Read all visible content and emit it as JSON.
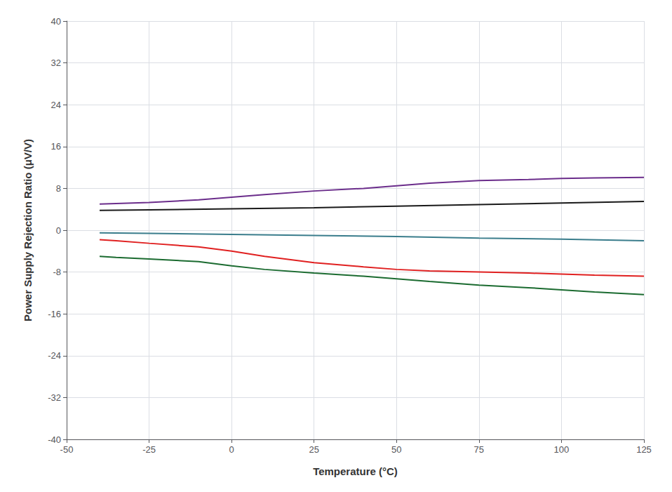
{
  "chart_data": {
    "type": "line",
    "xlabel": "Temperature (°C)",
    "ylabel": "Power Supply Rejection Ratio (μV/V)",
    "xlim": [
      -50,
      125
    ],
    "ylim": [
      -40,
      40
    ],
    "xticks": [
      -50,
      -25,
      0,
      25,
      50,
      75,
      100,
      125
    ],
    "yticks": [
      -40,
      -32,
      -24,
      -16,
      -8,
      0,
      8,
      16,
      24,
      32,
      40
    ],
    "grid": true,
    "series": [
      {
        "color": "#6B2D8B",
        "x": [
          -40,
          -35,
          -25,
          -10,
          0,
          10,
          25,
          40,
          50,
          60,
          75,
          90,
          100,
          110,
          125
        ],
        "values": [
          5.0,
          5.1,
          5.3,
          5.8,
          6.3,
          6.8,
          7.5,
          8.0,
          8.5,
          9.0,
          9.5,
          9.7,
          9.9,
          10.0,
          10.1
        ]
      },
      {
        "color": "#1a1a1a",
        "x": [
          -40,
          -25,
          0,
          25,
          50,
          75,
          100,
          125
        ],
        "values": [
          3.8,
          3.9,
          4.1,
          4.3,
          4.6,
          4.9,
          5.2,
          5.5
        ]
      },
      {
        "color": "#3A7D8C",
        "x": [
          -40,
          -25,
          0,
          25,
          50,
          75,
          100,
          125
        ],
        "values": [
          -0.5,
          -0.6,
          -0.8,
          -1.0,
          -1.2,
          -1.5,
          -1.7,
          -2.0
        ]
      },
      {
        "color": "#e02020",
        "x": [
          -40,
          -35,
          -25,
          -10,
          0,
          10,
          25,
          40,
          50,
          60,
          75,
          90,
          100,
          110,
          125
        ],
        "values": [
          -1.8,
          -2.0,
          -2.5,
          -3.2,
          -4.0,
          -5.0,
          -6.2,
          -7.0,
          -7.5,
          -7.8,
          -8.0,
          -8.2,
          -8.4,
          -8.6,
          -8.8
        ]
      },
      {
        "color": "#1B6B30",
        "x": [
          -40,
          -35,
          -25,
          -10,
          0,
          10,
          25,
          40,
          50,
          60,
          75,
          90,
          100,
          110,
          125
        ],
        "values": [
          -5.0,
          -5.2,
          -5.5,
          -6.0,
          -6.8,
          -7.5,
          -8.2,
          -8.8,
          -9.3,
          -9.8,
          -10.5,
          -11.0,
          -11.4,
          -11.8,
          -12.3
        ]
      }
    ]
  }
}
